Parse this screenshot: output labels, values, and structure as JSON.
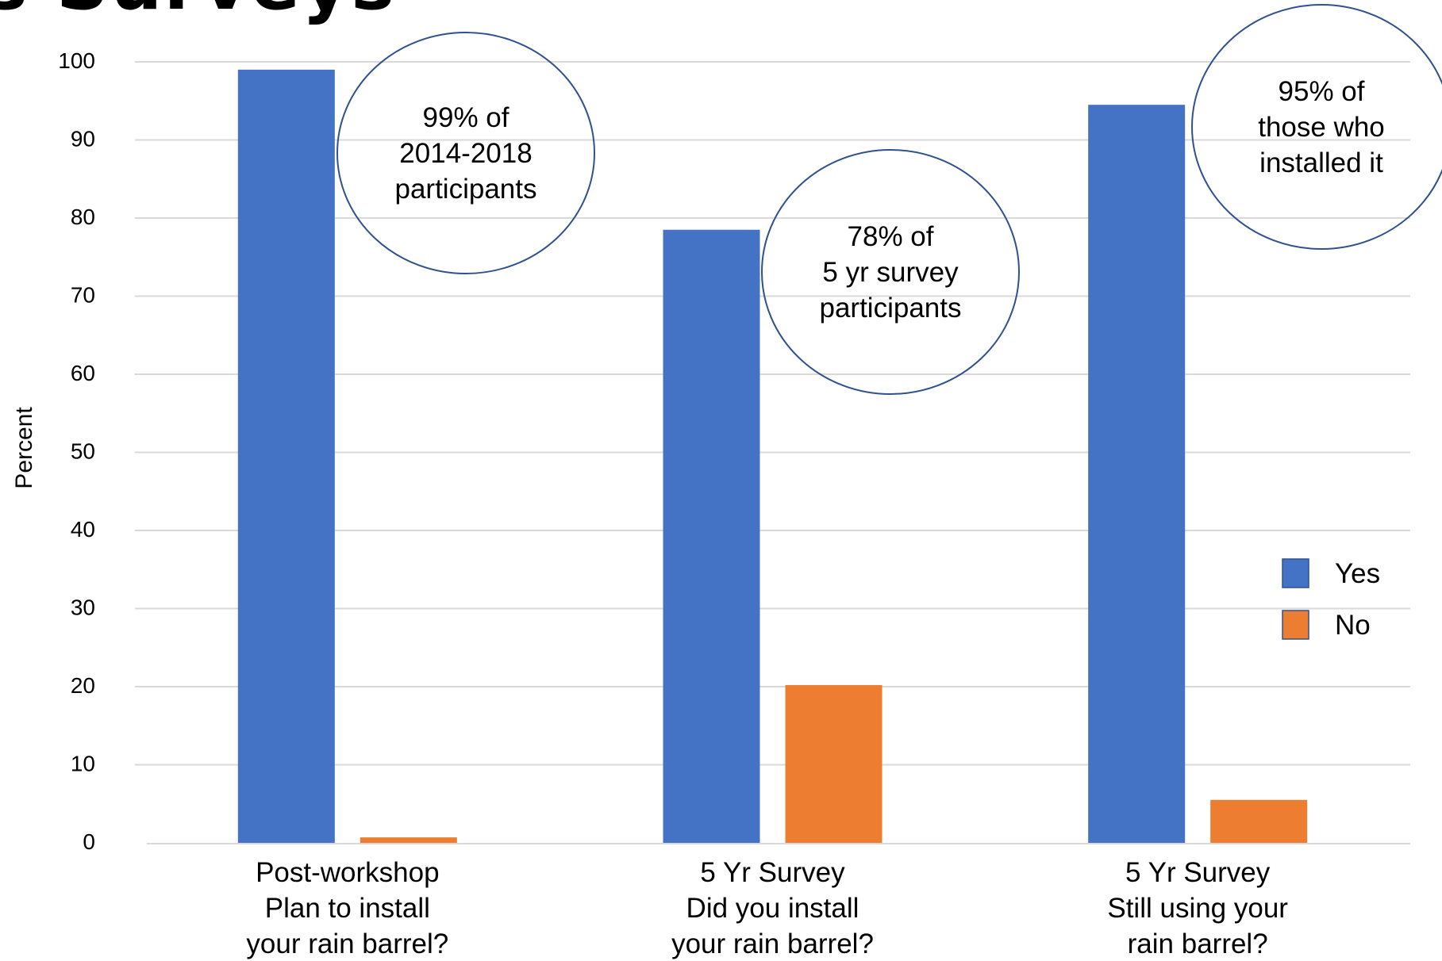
{
  "heading_fragment": "s Surveys",
  "chart_data": {
    "type": "bar",
    "categories": [
      [
        "Post-workshop",
        "Plan to install",
        "your rain barrel?"
      ],
      [
        "5 Yr Survey",
        "Did you install",
        "your rain barrel?"
      ],
      [
        "5 Yr Survey",
        "Still using your",
        "rain barrel?"
      ]
    ],
    "series": [
      {
        "name": "Yes",
        "color": "#4472C4",
        "values": [
          99,
          78.5,
          94.5
        ]
      },
      {
        "name": "No",
        "color": "#ED7D31",
        "values": [
          0.7,
          20.2,
          5.5
        ]
      }
    ],
    "ylabel": "Percent",
    "ylim": [
      0,
      100
    ],
    "yticks": [
      0,
      10,
      20,
      30,
      40,
      50,
      60,
      70,
      80,
      90,
      100
    ],
    "grid": true,
    "legend_position": "right",
    "annotations": [
      {
        "lines": [
          "99% of",
          "2014-2018",
          "participants"
        ]
      },
      {
        "lines": [
          "78% of",
          "5 yr survey",
          "participants"
        ]
      },
      {
        "lines": [
          "95% of",
          "those who",
          "installed it"
        ]
      }
    ]
  }
}
